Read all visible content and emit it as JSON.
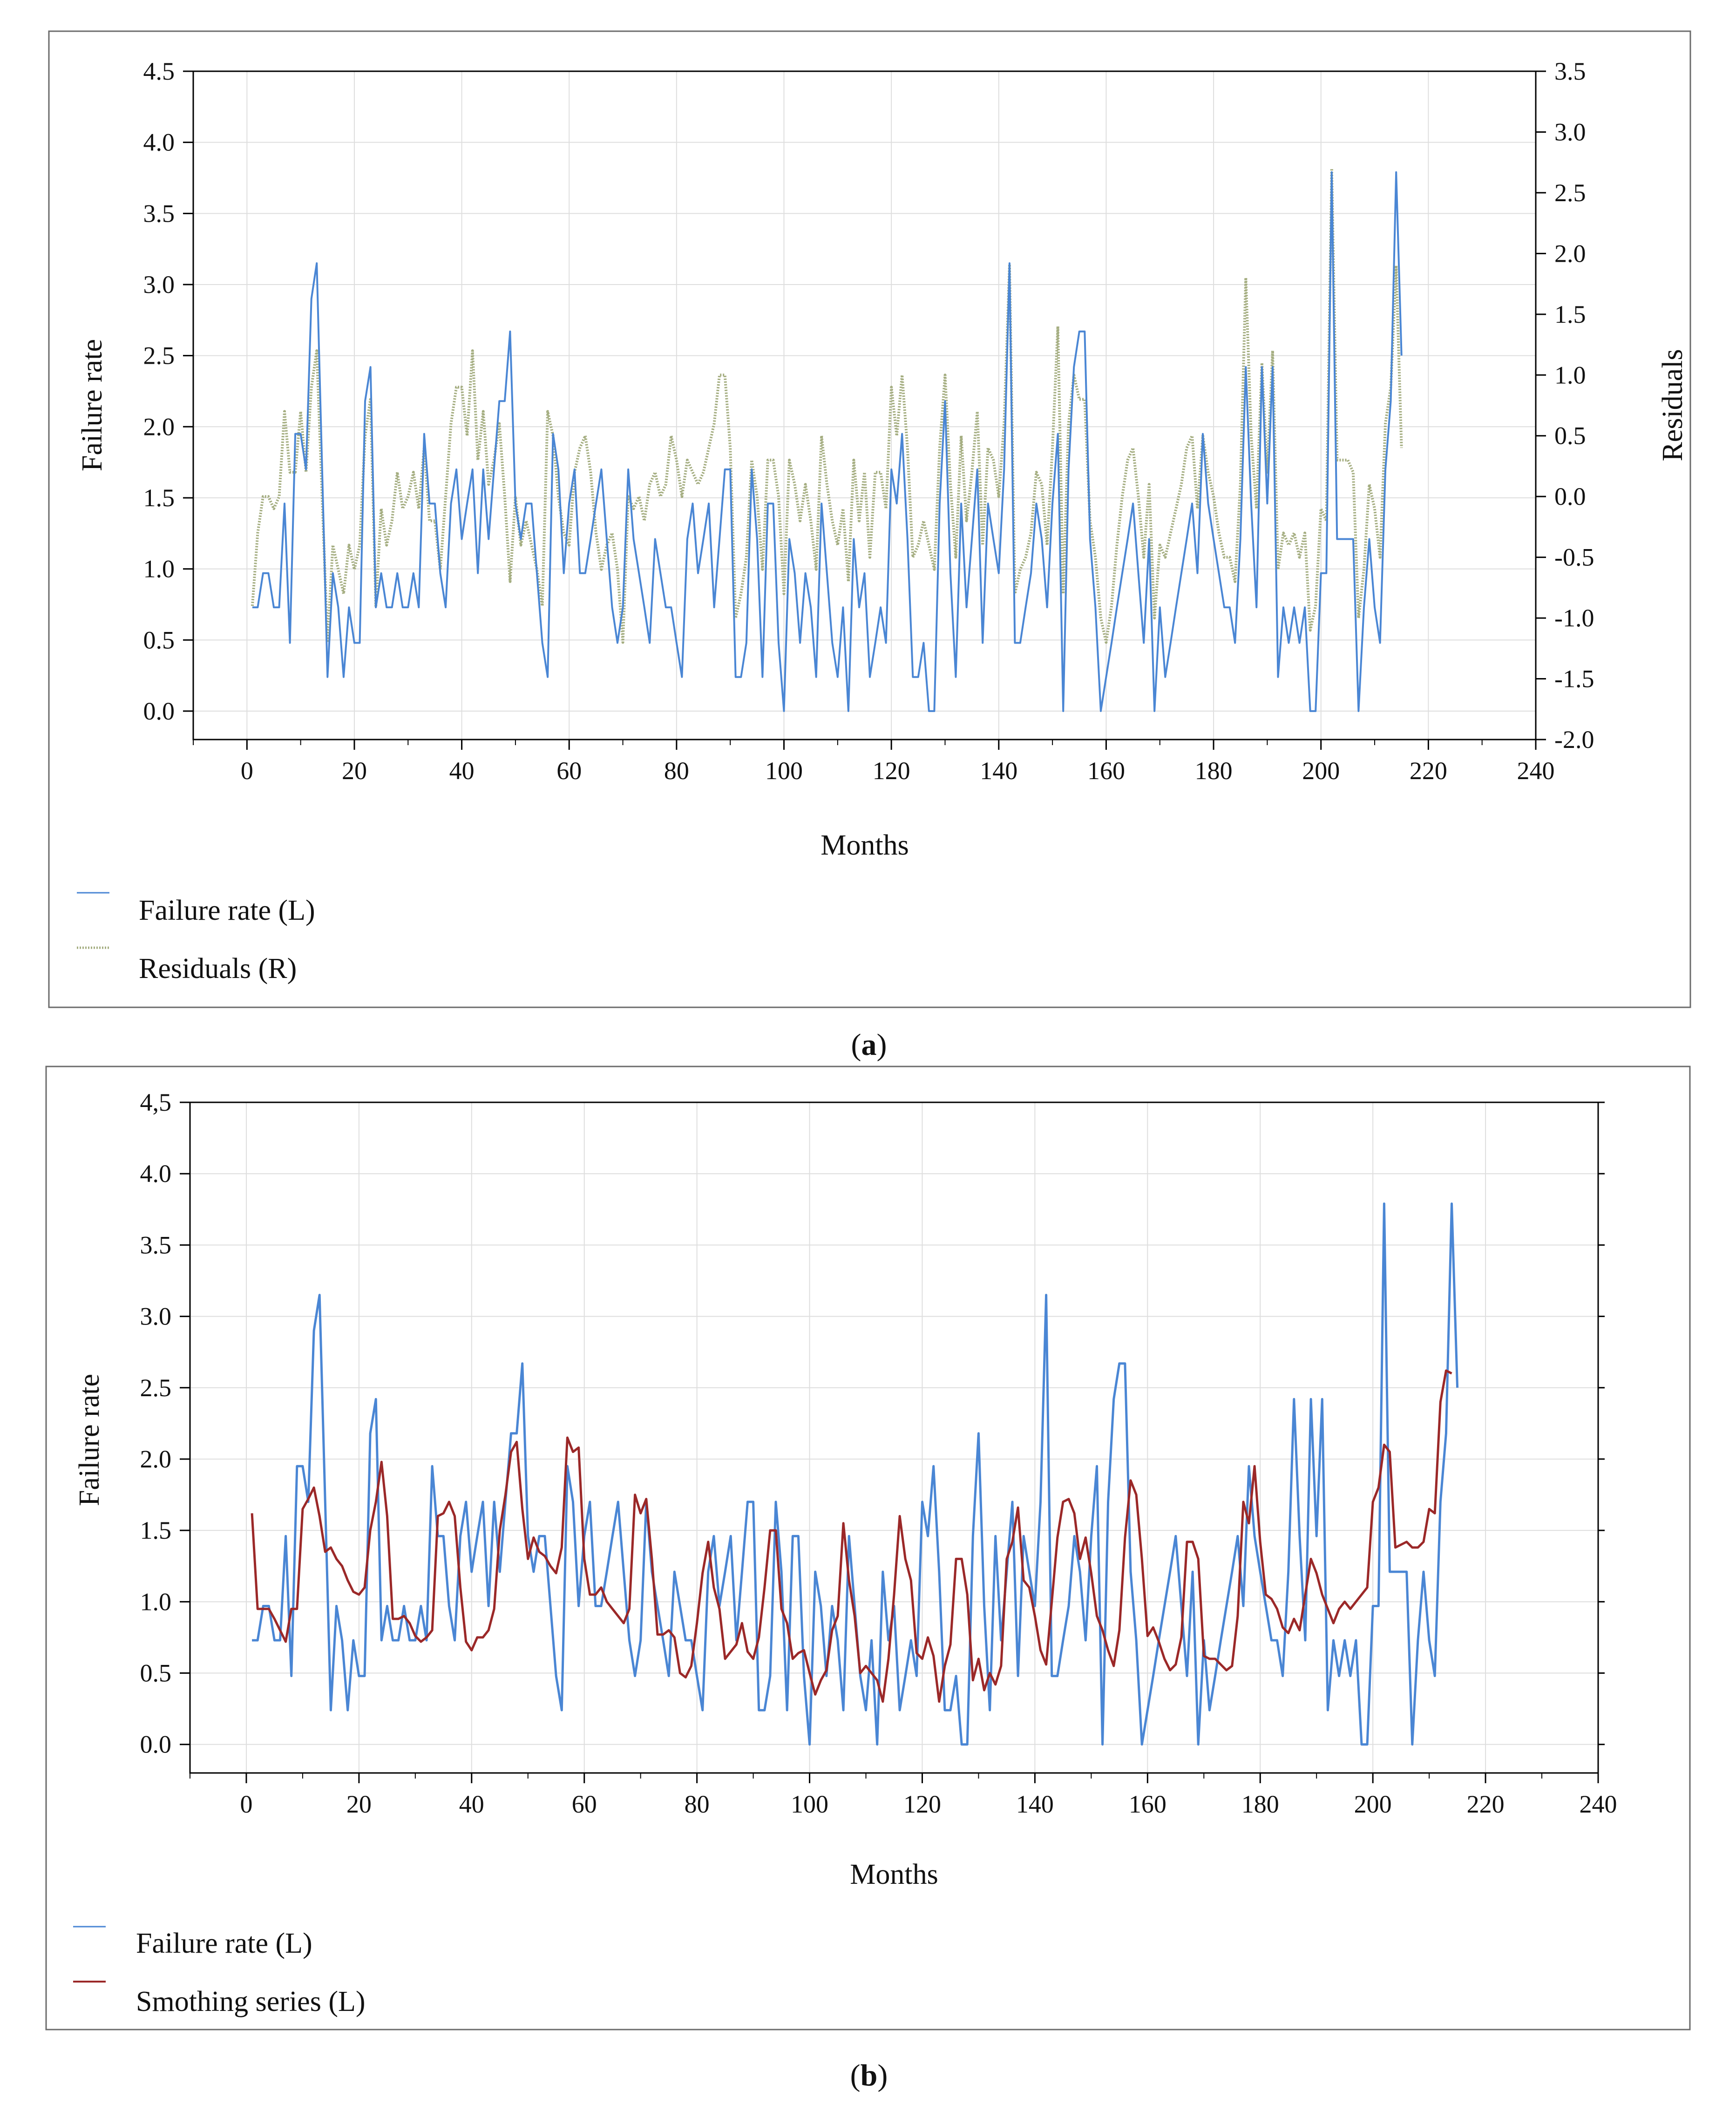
{
  "chart_data": [
    {
      "id": "a",
      "type": "line",
      "caption_open": "(",
      "caption_letter": "a",
      "caption_close": ")",
      "title": "",
      "xlabel": "Months",
      "ylabel_left": "Failure rate",
      "ylabel_right": "Residuals",
      "xlim": [
        -10,
        240
      ],
      "ylim_left": [
        -0.2,
        4.5
      ],
      "ylim_right": [
        -2.0,
        3.5
      ],
      "xticks": [
        0,
        20,
        40,
        60,
        80,
        100,
        120,
        140,
        160,
        180,
        200,
        220,
        240
      ],
      "xtick_labels": [
        "0",
        "20",
        "40",
        "60",
        "80",
        "100",
        "120",
        "140",
        "160",
        "180",
        "200",
        "220",
        "240"
      ],
      "yticks_left": [
        0.0,
        0.5,
        1.0,
        1.5,
        2.0,
        2.5,
        3.0,
        3.5,
        4.0,
        4.5
      ],
      "ytick_labels_left": [
        "0.0",
        "0.5",
        "1.0",
        "1.5",
        "2.0",
        "2.5",
        "3.0",
        "3.5",
        "4.0",
        "4.5"
      ],
      "yticks_right": [
        -2.0,
        -1.5,
        -1.0,
        -0.5,
        0.0,
        0.5,
        1.0,
        1.5,
        2.0,
        2.5,
        3.0,
        3.5
      ],
      "ytick_labels_right": [
        "-2.0",
        "-1.5",
        "-1.0",
        "-0.5",
        "0.0",
        "0.5",
        "1.0",
        "1.5",
        "2.0",
        "2.5",
        "3.0",
        "3.5"
      ],
      "grid": true,
      "legend_position": "bottom-left",
      "series": [
        {
          "name": "Failure rate (L)",
          "axis": "left",
          "color": "#4a86d4",
          "style": "solid",
          "x_start": 1,
          "values": [
            0.73,
            0.73,
            0.97,
            0.97,
            0.73,
            0.73,
            1.46,
            0.48,
            1.95,
            1.95,
            1.7,
            2.9,
            3.15,
            1.7,
            0.24,
            0.97,
            0.73,
            0.24,
            0.73,
            0.48,
            0.48,
            2.18,
            2.42,
            0.73,
            0.97,
            0.73,
            0.73,
            0.97,
            0.73,
            0.73,
            0.97,
            0.73,
            1.95,
            1.46,
            1.46,
            0.97,
            0.73,
            1.46,
            1.7,
            1.21,
            1.46,
            1.7,
            0.97,
            1.7,
            1.21,
            1.7,
            2.18,
            2.18,
            2.67,
            1.46,
            1.21,
            1.46,
            1.46,
            0.97,
            0.48,
            0.24,
            1.95,
            1.7,
            0.97,
            1.46,
            1.7,
            0.97,
            0.97,
            1.21,
            1.46,
            1.7,
            1.21,
            0.73,
            0.48,
            0.73,
            1.7,
            1.21,
            0.97,
            0.73,
            0.48,
            1.21,
            0.97,
            0.73,
            0.73,
            0.48,
            0.24,
            1.21,
            1.46,
            0.97,
            1.21,
            1.46,
            0.73,
            1.21,
            1.7,
            1.7,
            0.24,
            0.24,
            0.48,
            1.7,
            1.21,
            0.24,
            1.46,
            1.46,
            0.48,
            0.0,
            1.21,
            0.97,
            0.48,
            0.97,
            0.73,
            0.24,
            1.46,
            0.97,
            0.48,
            0.24,
            0.73,
            0.0,
            1.21,
            0.73,
            0.97,
            0.24,
            0.48,
            0.73,
            0.48,
            1.7,
            1.46,
            1.95,
            1.21,
            0.24,
            0.24,
            0.48,
            0.0,
            0.0,
            1.46,
            2.18,
            0.97,
            0.24,
            1.46,
            0.73,
            1.21,
            1.7,
            0.48,
            1.46,
            1.21,
            0.97,
            1.7,
            3.15,
            0.48,
            0.48,
            0.73,
            0.97,
            1.46,
            1.21,
            0.73,
            1.46,
            1.95,
            0.0,
            1.7,
            2.42,
            2.67,
            2.67,
            1.21,
            0.73,
            0.0,
            0.24,
            0.48,
            0.73,
            0.97,
            1.21,
            1.46,
            0.97,
            0.48,
            1.21,
            0.0,
            0.73,
            0.24,
            0.48,
            0.73,
            0.97,
            1.21,
            1.46,
            0.97,
            1.95,
            1.46,
            1.21,
            0.97,
            0.73,
            0.73,
            0.48,
            1.21,
            2.42,
            1.46,
            0.73,
            2.42,
            1.46,
            2.42,
            0.24,
            0.73,
            0.48,
            0.73,
            0.48,
            0.73,
            0.0,
            0.0,
            0.97,
            0.97,
            3.79,
            1.21,
            1.21,
            1.21,
            1.21,
            0.0,
            0.73,
            1.21,
            0.73,
            0.48,
            1.7,
            2.18,
            3.79,
            2.5
          ]
        },
        {
          "name": "Residuals (R)",
          "axis": "right",
          "color": "#a4ad80",
          "style": "dotted",
          "x_start": 1,
          "values": [
            -0.9,
            -0.3,
            0.0,
            0.0,
            -0.1,
            0.0,
            0.7,
            0.2,
            0.2,
            0.7,
            0.2,
            0.9,
            1.2,
            0.0,
            -1.2,
            -0.4,
            -0.6,
            -0.8,
            -0.4,
            -0.6,
            -0.4,
            0.5,
            0.8,
            -0.9,
            -0.1,
            -0.4,
            -0.2,
            0.2,
            -0.1,
            0.0,
            0.2,
            -0.1,
            0.4,
            -0.2,
            -0.2,
            -0.6,
            0.0,
            0.6,
            0.9,
            0.9,
            0.5,
            1.2,
            0.3,
            0.7,
            0.1,
            0.3,
            0.6,
            0.0,
            -0.7,
            0.0,
            -0.4,
            -0.2,
            -0.4,
            -0.6,
            -0.9,
            0.7,
            0.5,
            0.0,
            -0.3,
            -0.4,
            0.2,
            0.4,
            0.5,
            0.2,
            -0.3,
            -0.6,
            -0.4,
            -0.3,
            -0.6,
            -1.2,
            0.0,
            -0.1,
            0.0,
            -0.2,
            0.1,
            0.2,
            0.0,
            0.1,
            0.5,
            0.3,
            0.0,
            0.3,
            0.2,
            0.1,
            0.2,
            0.4,
            0.6,
            1.0,
            1.0,
            0.4,
            -1.0,
            -0.8,
            -0.5,
            0.3,
            0.0,
            -0.6,
            0.3,
            0.3,
            0.0,
            -0.8,
            0.3,
            0.1,
            -0.2,
            0.1,
            -0.2,
            -0.6,
            0.5,
            0.1,
            -0.2,
            -0.4,
            -0.1,
            -0.7,
            0.3,
            -0.2,
            0.2,
            -0.5,
            0.2,
            0.2,
            -0.1,
            0.9,
            0.5,
            1.0,
            0.4,
            -0.5,
            -0.4,
            -0.2,
            -0.4,
            -0.6,
            0.4,
            1.0,
            0.1,
            -0.5,
            0.5,
            -0.2,
            0.2,
            0.7,
            -0.4,
            0.4,
            0.3,
            0.0,
            0.6,
            1.9,
            -0.8,
            -0.6,
            -0.5,
            -0.3,
            0.2,
            0.1,
            -0.4,
            0.4,
            1.4,
            -0.8,
            0.6,
            1.0,
            0.8,
            0.8,
            -0.2,
            -0.5,
            -1.0,
            -1.2,
            -0.9,
            -0.4,
            0.0,
            0.3,
            0.4,
            0.0,
            -0.5,
            0.1,
            -1.0,
            -0.4,
            -0.5,
            -0.3,
            -0.1,
            0.1,
            0.4,
            0.5,
            -0.1,
            0.5,
            0.2,
            0.0,
            -0.3,
            -0.5,
            -0.5,
            -0.7,
            0.1,
            1.8,
            0.5,
            -0.1,
            1.1,
            0.2,
            1.2,
            -0.6,
            -0.3,
            -0.4,
            -0.3,
            -0.5,
            -0.3,
            -1.1,
            -0.9,
            -0.1,
            -0.2,
            2.7,
            0.3,
            0.3,
            0.3,
            0.2,
            -1.0,
            -0.6,
            0.1,
            -0.1,
            -0.5,
            0.6,
            0.9,
            1.9,
            0.4
          ]
        }
      ],
      "legend": [
        "Failure rate (L)",
        "Residuals (R)"
      ]
    },
    {
      "id": "b",
      "type": "line",
      "caption_open": "(",
      "caption_letter": "b",
      "caption_close": ")",
      "title": "",
      "xlabel": "Months",
      "ylabel": "Failure rate",
      "xlim": [
        -10,
        240
      ],
      "ylim": [
        -0.2,
        4.5
      ],
      "xticks": [
        0,
        20,
        40,
        60,
        80,
        100,
        120,
        140,
        160,
        180,
        200,
        220,
        240
      ],
      "xtick_labels": [
        "0",
        "20",
        "40",
        "60",
        "80",
        "100",
        "120",
        "140",
        "160",
        "180",
        "200",
        "220",
        "240"
      ],
      "yticks": [
        0.0,
        0.5,
        1.0,
        1.5,
        2.0,
        2.5,
        3.0,
        3.5,
        4.0,
        4.5
      ],
      "ytick_labels": [
        "0.0",
        "0.5",
        "1.0",
        "1.5",
        "2.0",
        "2.5",
        "3.0",
        "3.5",
        "4.0",
        "4,5"
      ],
      "grid": true,
      "legend_position": "bottom-left",
      "series": [
        {
          "name": "Failure rate (L)",
          "axis": "left",
          "color": "#4a86d4",
          "style": "solid",
          "x_start": 1,
          "same_as": "a.Failure rate (L)"
        },
        {
          "name": "Smothing series (L)",
          "axis": "left",
          "color": "#9b2828",
          "style": "solid",
          "x_start": 1,
          "values": [
            1.62,
            0.95,
            0.95,
            0.95,
            0.88,
            0.8,
            0.72,
            0.95,
            0.95,
            1.65,
            1.72,
            1.8,
            1.6,
            1.35,
            1.38,
            1.3,
            1.25,
            1.15,
            1.07,
            1.05,
            1.1,
            1.5,
            1.7,
            1.98,
            1.6,
            0.88,
            0.88,
            0.9,
            0.85,
            0.76,
            0.72,
            0.75,
            0.8,
            1.6,
            1.62,
            1.7,
            1.6,
            1.1,
            0.72,
            0.66,
            0.75,
            0.75,
            0.8,
            0.95,
            1.5,
            1.75,
            2.05,
            2.12,
            1.65,
            1.3,
            1.45,
            1.35,
            1.32,
            1.25,
            1.2,
            1.38,
            2.15,
            2.05,
            2.08,
            1.3,
            1.05,
            1.05,
            1.1,
            1.0,
            0.95,
            0.9,
            0.85,
            0.95,
            1.75,
            1.62,
            1.72,
            1.3,
            0.77,
            0.77,
            0.8,
            0.75,
            0.5,
            0.47,
            0.55,
            0.85,
            1.2,
            1.42,
            1.1,
            0.95,
            0.6,
            0.65,
            0.7,
            0.85,
            0.65,
            0.6,
            0.75,
            1.1,
            1.5,
            1.5,
            0.95,
            0.85,
            0.6,
            0.64,
            0.66,
            0.5,
            0.35,
            0.45,
            0.52,
            0.8,
            0.9,
            1.55,
            1.15,
            0.9,
            0.5,
            0.55,
            0.5,
            0.45,
            0.3,
            0.6,
            1.05,
            1.6,
            1.3,
            1.15,
            0.64,
            0.6,
            0.75,
            0.62,
            0.3,
            0.55,
            0.7,
            1.3,
            1.3,
            1.05,
            0.45,
            0.6,
            0.38,
            0.5,
            0.42,
            0.55,
            1.3,
            1.42,
            1.66,
            1.15,
            1.1,
            0.9,
            0.66,
            0.56,
            1.0,
            1.45,
            1.7,
            1.72,
            1.62,
            1.3,
            1.45,
            1.2,
            0.9,
            0.8,
            0.66,
            0.55,
            0.8,
            1.45,
            1.85,
            1.75,
            1.3,
            0.76,
            0.82,
            0.72,
            0.6,
            0.52,
            0.56,
            0.75,
            1.42,
            1.42,
            1.3,
            0.62,
            0.6,
            0.6,
            0.56,
            0.52,
            0.55,
            0.9,
            1.7,
            1.55,
            1.95,
            1.42,
            1.05,
            1.02,
            0.95,
            0.82,
            0.78,
            0.88,
            0.8,
            1.05,
            1.3,
            1.2,
            1.05,
            0.95,
            0.85,
            0.95,
            1.0,
            0.95,
            1.0,
            1.05,
            1.1,
            1.7,
            1.8,
            2.1,
            2.05,
            1.38,
            1.4,
            1.42,
            1.38,
            1.38,
            1.42,
            1.65,
            1.62,
            2.4,
            2.62,
            2.6
          ]
        }
      ],
      "legend": [
        "Failure rate (L)",
        "Smothing series (L)"
      ]
    }
  ]
}
